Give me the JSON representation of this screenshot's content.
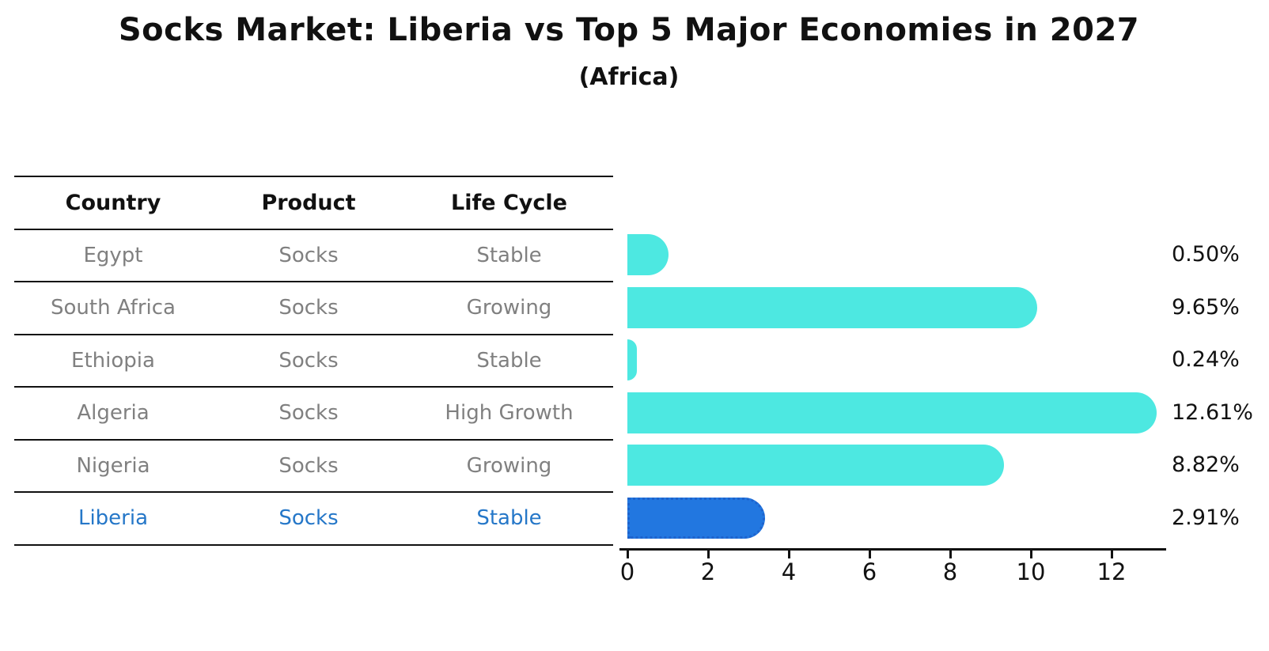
{
  "title": "Socks Market: Liberia vs Top 5 Major Economies in 2027",
  "subtitle": "(Africa)",
  "table": {
    "headers": [
      "Country",
      "Product",
      "Life Cycle"
    ],
    "rows": [
      {
        "country": "Egypt",
        "product": "Socks",
        "life_cycle": "Stable",
        "highlight": false
      },
      {
        "country": "South Africa",
        "product": "Socks",
        "life_cycle": "Growing",
        "highlight": false
      },
      {
        "country": "Ethiopia",
        "product": "Socks",
        "life_cycle": "Stable",
        "highlight": false
      },
      {
        "country": "Algeria",
        "product": "Socks",
        "life_cycle": "High Growth",
        "highlight": false
      },
      {
        "country": "Nigeria",
        "product": "Socks",
        "life_cycle": "Growing",
        "highlight": false
      },
      {
        "country": "Liberia",
        "product": "Socks",
        "life_cycle": "Stable",
        "highlight": true
      }
    ]
  },
  "chart_data": {
    "type": "bar",
    "orientation": "horizontal",
    "title": "Socks Market: Liberia vs Top 5 Major Economies in 2027",
    "subtitle": "(Africa)",
    "categories": [
      "Egypt",
      "South Africa",
      "Ethiopia",
      "Algeria",
      "Nigeria",
      "Liberia"
    ],
    "values": [
      0.5,
      9.65,
      0.24,
      12.61,
      8.82,
      2.91
    ],
    "value_labels": [
      "0.50%",
      "9.65%",
      "0.24%",
      "12.61%",
      "8.82%",
      "2.91%"
    ],
    "highlight_category": "Liberia",
    "x_ticks": [
      "0",
      "2",
      "4",
      "6",
      "8",
      "10",
      "12"
    ],
    "x_tick_values": [
      0,
      2,
      4,
      6,
      8,
      10,
      12
    ],
    "xlim": [
      0,
      13.3
    ],
    "grid": false,
    "legend": "none",
    "colors": {
      "bar": "#4DE8E1",
      "highlight_bar": "#2277E0",
      "highlight_border": "#1E63CD",
      "highlight_text": "#2577C8",
      "row_text": "#808080",
      "axis": "#111111"
    }
  }
}
